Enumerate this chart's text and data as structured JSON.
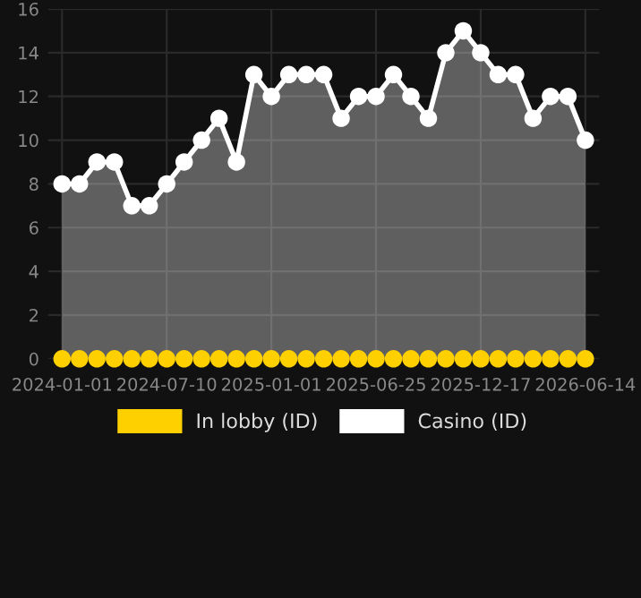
{
  "chart_data": {
    "type": "area",
    "categories": [
      "2024-01-01",
      null,
      null,
      null,
      null,
      null,
      "2024-07-10",
      null,
      null,
      null,
      null,
      null,
      "2025-01-01",
      null,
      null,
      null,
      null,
      null,
      "2025-06-25",
      null,
      null,
      null,
      null,
      null,
      "2025-12-17",
      null,
      null,
      null,
      null,
      null,
      "2026-06-14"
    ],
    "series": [
      {
        "name": "In lobby (ID)",
        "type": "scatter",
        "color": "#ffd000",
        "values": [
          0,
          0,
          0,
          0,
          0,
          0,
          0,
          0,
          0,
          0,
          0,
          0,
          0,
          0,
          0,
          0,
          0,
          0,
          0,
          0,
          0,
          0,
          0,
          0,
          0,
          0,
          0,
          0,
          0,
          0,
          0
        ]
      },
      {
        "name": "Casino (ID)",
        "color": "#ffffff",
        "values": [
          8,
          8,
          9,
          9,
          7,
          7,
          8,
          9,
          10,
          11,
          9,
          13,
          12,
          13,
          13,
          13,
          11,
          12,
          12,
          13,
          12,
          11,
          14,
          15,
          14,
          13,
          13,
          11,
          12,
          12,
          10
        ]
      }
    ],
    "ylim": [
      0,
      16
    ],
    "yticks": [
      0,
      2,
      4,
      6,
      8,
      10,
      12,
      14,
      16
    ],
    "grid": true,
    "legend": "bottom",
    "marker": "circle",
    "line_style": "solid"
  }
}
